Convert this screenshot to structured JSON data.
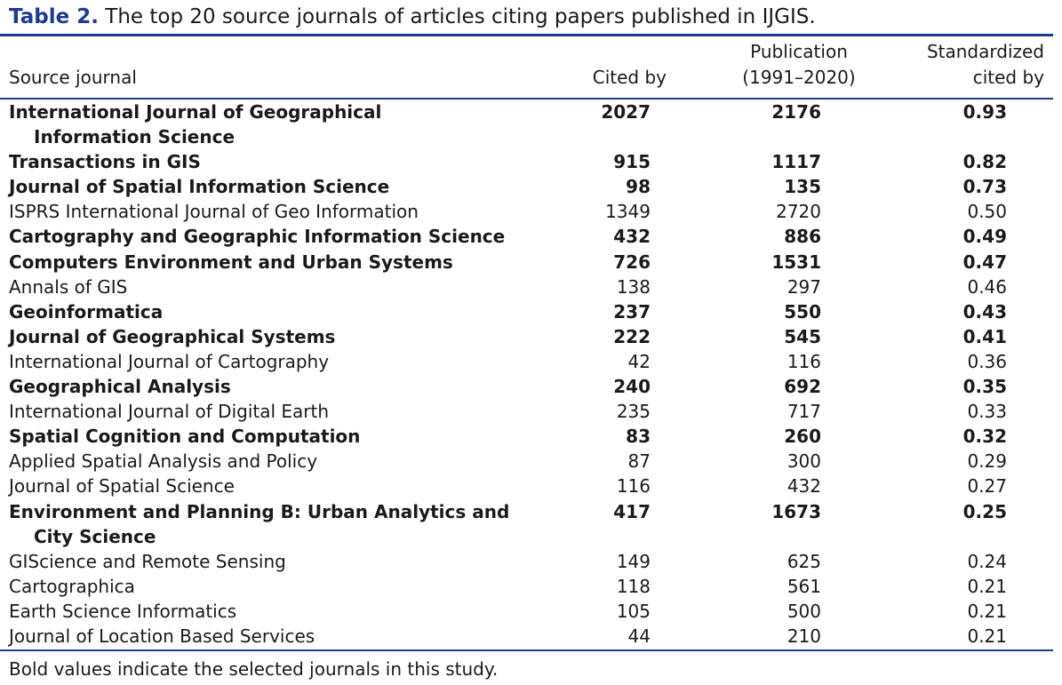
{
  "caption": {
    "label": "Table 2.",
    "text": "The top 20 source journals of articles citing papers published in IJGIS."
  },
  "headers": {
    "journal": "Source journal",
    "cited_by": "Cited by",
    "publication_line1": "Publication",
    "publication_line2": "(1991–2020)",
    "standardized_line1": "Standardized",
    "standardized_line2": "cited by"
  },
  "rows": [
    {
      "journal": "International Journal of Geographical",
      "journal_cont": "Information Science",
      "cited_by": "2027",
      "publication": "2176",
      "standardized": "0.93",
      "bold": true
    },
    {
      "journal": "Transactions in GIS",
      "journal_cont": "",
      "cited_by": "915",
      "publication": "1117",
      "standardized": "0.82",
      "bold": true
    },
    {
      "journal": "Journal of Spatial Information Science",
      "journal_cont": "",
      "cited_by": "98",
      "publication": "135",
      "standardized": "0.73",
      "bold": true
    },
    {
      "journal": "ISPRS International Journal of Geo Information",
      "journal_cont": "",
      "cited_by": "1349",
      "publication": "2720",
      "standardized": "0.50",
      "bold": false
    },
    {
      "journal": "Cartography and Geographic Information Science",
      "journal_cont": "",
      "cited_by": "432",
      "publication": "886",
      "standardized": "0.49",
      "bold": true
    },
    {
      "journal": "Computers Environment and Urban Systems",
      "journal_cont": "",
      "cited_by": "726",
      "publication": "1531",
      "standardized": "0.47",
      "bold": true
    },
    {
      "journal": "Annals of GIS",
      "journal_cont": "",
      "cited_by": "138",
      "publication": "297",
      "standardized": "0.46",
      "bold": false
    },
    {
      "journal": "Geoinformatica",
      "journal_cont": "",
      "cited_by": "237",
      "publication": "550",
      "standardized": "0.43",
      "bold": true
    },
    {
      "journal": "Journal of Geographical Systems",
      "journal_cont": "",
      "cited_by": "222",
      "publication": "545",
      "standardized": "0.41",
      "bold": true
    },
    {
      "journal": "International Journal of Cartography",
      "journal_cont": "",
      "cited_by": "42",
      "publication": "116",
      "standardized": "0.36",
      "bold": false
    },
    {
      "journal": "Geographical Analysis",
      "journal_cont": "",
      "cited_by": "240",
      "publication": "692",
      "standardized": "0.35",
      "bold": true
    },
    {
      "journal": "International Journal of Digital Earth",
      "journal_cont": "",
      "cited_by": "235",
      "publication": "717",
      "standardized": "0.33",
      "bold": false
    },
    {
      "journal": "Spatial Cognition and Computation",
      "journal_cont": "",
      "cited_by": "83",
      "publication": "260",
      "standardized": "0.32",
      "bold": true
    },
    {
      "journal": "Applied Spatial Analysis and Policy",
      "journal_cont": "",
      "cited_by": "87",
      "publication": "300",
      "standardized": "0.29",
      "bold": false
    },
    {
      "journal": "Journal of Spatial Science",
      "journal_cont": "",
      "cited_by": "116",
      "publication": "432",
      "standardized": "0.27",
      "bold": false
    },
    {
      "journal": "Environment and Planning B: Urban Analytics and",
      "journal_cont": "City Science",
      "cited_by": "417",
      "publication": "1673",
      "standardized": "0.25",
      "bold": true
    },
    {
      "journal": "GIScience and Remote Sensing",
      "journal_cont": "",
      "cited_by": "149",
      "publication": "625",
      "standardized": "0.24",
      "bold": false
    },
    {
      "journal": "Cartographica",
      "journal_cont": "",
      "cited_by": "118",
      "publication": "561",
      "standardized": "0.21",
      "bold": false
    },
    {
      "journal": "Earth Science Informatics",
      "journal_cont": "",
      "cited_by": "105",
      "publication": "500",
      "standardized": "0.21",
      "bold": false
    },
    {
      "journal": "Journal of Location Based Services",
      "journal_cont": "",
      "cited_by": "44",
      "publication": "210",
      "standardized": "0.21",
      "bold": false
    }
  ],
  "footnote": "Bold values indicate the selected journals in this study.",
  "colors": {
    "accent": "#1f3b8f",
    "text": "#1a1a1a"
  }
}
